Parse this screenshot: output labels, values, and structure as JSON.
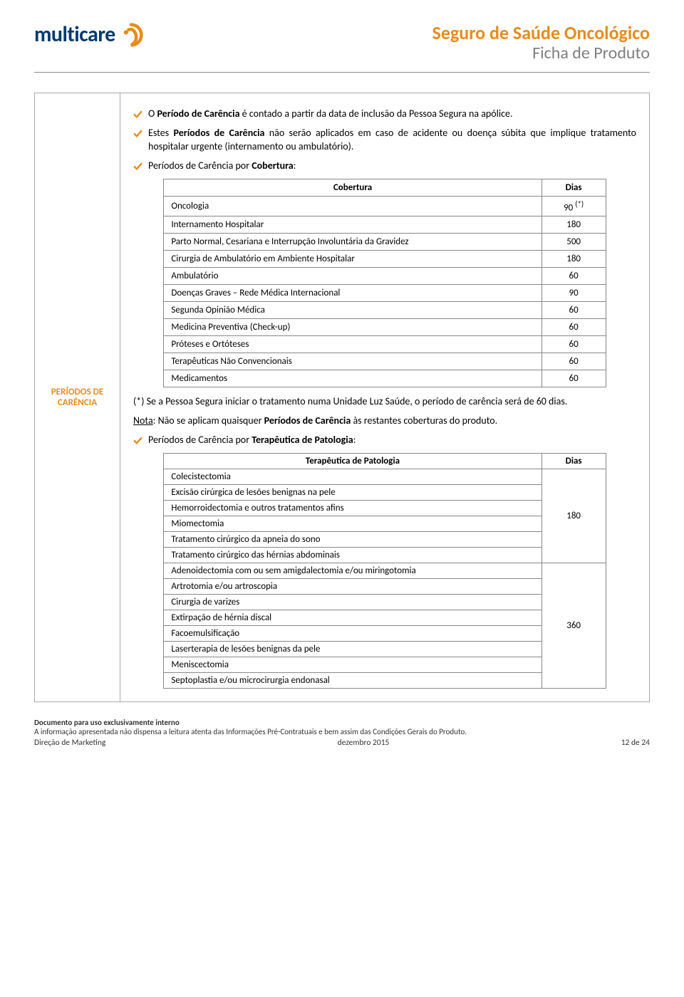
{
  "header": {
    "logo_text": "multicare",
    "title1": "Seguro de Saúde Oncológico",
    "title2": "Ficha de Produto"
  },
  "section_label": "PERÍODOS DE CARÊNCIA",
  "bullets": {
    "b1_pre": "O ",
    "b1_bold": "Período de Carência",
    "b1_post": " é contado a partir da data de inclusão da Pessoa Segura na apólice.",
    "b2_pre": "Estes ",
    "b2_bold": "Períodos de Carência",
    "b2_post": " não serão aplicados em caso de acidente ou doença súbita que implique tratamento hospitalar urgente (internamento ou ambulatório).",
    "b3_pre": "Períodos de Carência por ",
    "b3_bold": "Cobertura",
    "b3_post": ":",
    "b4_pre": "Períodos de Carência por ",
    "b4_bold": "Terapêutica de Patologia",
    "b4_post": ":"
  },
  "table1": {
    "h1": "Cobertura",
    "h2": "Dias",
    "rows": [
      {
        "label": "Oncologia",
        "value": "90 ",
        "sup": "(*)"
      },
      {
        "label": "Internamento Hospitalar",
        "value": "180"
      },
      {
        "label": "Parto Normal, Cesariana e Interrupção Involuntária da Gravidez",
        "value": "500"
      },
      {
        "label": "Cirurgia de Ambulatório em Ambiente Hospitalar",
        "value": "180"
      },
      {
        "label": "Ambulatório",
        "value": "60"
      },
      {
        "label": "Doenças Graves – Rede Médica Internacional",
        "value": "90"
      },
      {
        "label": "Segunda Opinião Médica",
        "value": "60"
      },
      {
        "label": "Medicina Preventiva (Check-up)",
        "value": "60"
      },
      {
        "label": "Próteses e Ortóteses",
        "value": "60"
      },
      {
        "label": "Terapêuticas Não Convencionais",
        "value": "60"
      },
      {
        "label": "Medicamentos",
        "value": "60"
      }
    ]
  },
  "note": {
    "p1": "(*) Se a Pessoa Segura iniciar o tratamento numa Unidade Luz Saúde, o período de carência será de 60 dias.",
    "p2_u": "Nota",
    "p2_a": ": Não se aplicam quaisquer ",
    "p2_b": "Períodos de Carência",
    "p2_c": " às restantes coberturas do produto."
  },
  "table2": {
    "h1": "Terapêutica de Patologia",
    "h2": "Dias",
    "group1": {
      "items": [
        "Colecistectomia",
        "Excisão cirúrgica de lesões benignas na pele",
        "Hemorroidectomia e outros tratamentos afins",
        "Miomectomia",
        "Tratamento cirúrgico da apneia do sono",
        "Tratamento cirúrgico das hérnias abdominais"
      ],
      "value": "180"
    },
    "group2": {
      "items": [
        "Adenoidectomia com ou sem amigdalectomia e/ou miringotomia",
        "Artrotomia e/ou artroscopia",
        "Cirurgia de varizes",
        "Extirpação de hérnia discal",
        "Facoemulsificação",
        "Laserterapia de lesões benignas da pele",
        "Meniscectomia",
        "Septoplastia e/ou microcirurgia endonasal"
      ],
      "value": "360"
    }
  },
  "footer": {
    "l1": "Documento para uso exclusivamente interno",
    "l2": "A informação apresentada não dispensa a leitura atenta das Informações Pré-Contratuais e bem assim das Condições Gerais do Produto.",
    "left": "Direção de Marketing",
    "center": "dezembro 2015",
    "right": "12 de 24"
  },
  "colors": {
    "orange": "#e88b1e",
    "blue": "#003a70",
    "grey": "#7f7f7f"
  }
}
